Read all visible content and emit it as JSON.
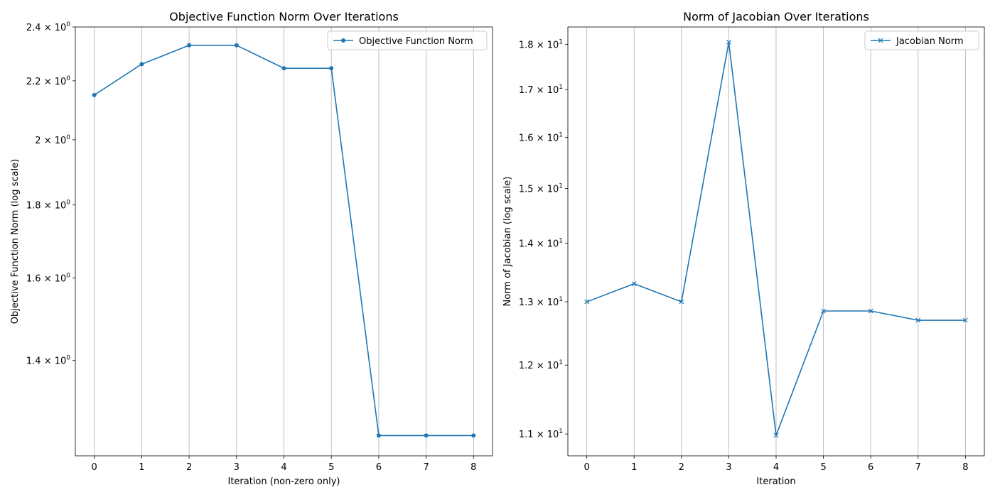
{
  "chart_data": [
    {
      "type": "line",
      "title": "Objective Function Norm Over Iterations",
      "xlabel": "Iteration (non-zero only)",
      "ylabel": "Objective Function Norm (log scale)",
      "y_scale": "log",
      "x": [
        0,
        1,
        2,
        3,
        4,
        5,
        6,
        7,
        8
      ],
      "xlim": [
        -0.4,
        8.4
      ],
      "ylim": [
        1.2,
        2.4
      ],
      "x_ticks": [
        "0",
        "1",
        "2",
        "3",
        "4",
        "5",
        "6",
        "7",
        "8"
      ],
      "y_ticks": [
        {
          "value": 1.4,
          "mantissa": "1.4",
          "exponent": "0"
        },
        {
          "value": 1.6,
          "mantissa": "1.6",
          "exponent": "0"
        },
        {
          "value": 1.8,
          "mantissa": "1.8",
          "exponent": "0"
        },
        {
          "value": 2.0,
          "mantissa": "2",
          "exponent": "0"
        },
        {
          "value": 2.2,
          "mantissa": "2.2",
          "exponent": "0"
        },
        {
          "value": 2.4,
          "mantissa": "2.4",
          "exponent": "0"
        }
      ],
      "grid": "vertical",
      "legend_position": "upper right",
      "series": [
        {
          "name": "Objective Function Norm",
          "marker": "circle",
          "color": "#1f77b4",
          "values": [
            2.15,
            2.26,
            2.33,
            2.33,
            2.245,
            2.245,
            1.24,
            1.24,
            1.24
          ]
        }
      ]
    },
    {
      "type": "line",
      "title": "Norm of Jacobian Over Iterations",
      "xlabel": "Iteration",
      "ylabel": "Norm of Jacobian (log scale)",
      "y_scale": "log",
      "x": [
        0,
        1,
        2,
        3,
        4,
        5,
        6,
        7,
        8
      ],
      "xlim": [
        -0.4,
        8.4
      ],
      "ylim": [
        10.7,
        18.4
      ],
      "x_ticks": [
        "0",
        "1",
        "2",
        "3",
        "4",
        "5",
        "6",
        "7",
        "8"
      ],
      "y_ticks": [
        {
          "value": 11,
          "mantissa": "1.1",
          "exponent": "1"
        },
        {
          "value": 12,
          "mantissa": "1.2",
          "exponent": "1"
        },
        {
          "value": 13,
          "mantissa": "1.3",
          "exponent": "1"
        },
        {
          "value": 14,
          "mantissa": "1.4",
          "exponent": "1"
        },
        {
          "value": 15,
          "mantissa": "1.5",
          "exponent": "1"
        },
        {
          "value": 16,
          "mantissa": "1.6",
          "exponent": "1"
        },
        {
          "value": 17,
          "mantissa": "1.7",
          "exponent": "1"
        },
        {
          "value": 18,
          "mantissa": "1.8",
          "exponent": "1"
        }
      ],
      "grid": "vertical",
      "legend_position": "upper right",
      "series": [
        {
          "name": "Jacobian Norm",
          "marker": "x",
          "color": "#1f77b4",
          "values": [
            13.0,
            13.3,
            13.0,
            18.05,
            10.98,
            12.85,
            12.85,
            12.7,
            12.7
          ]
        }
      ]
    }
  ]
}
